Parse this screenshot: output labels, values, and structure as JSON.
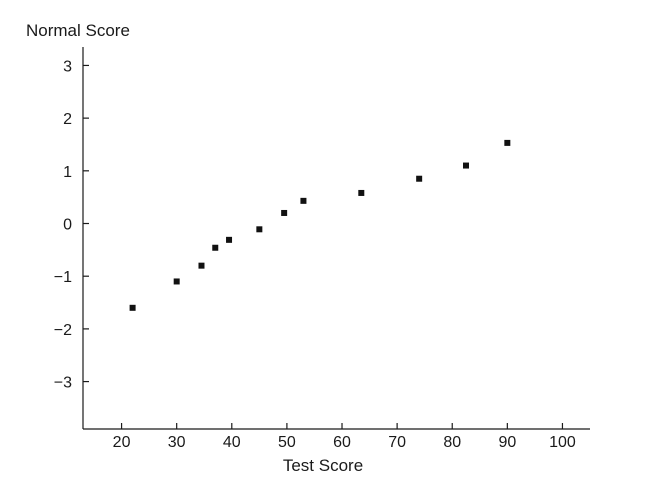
{
  "chart_data": {
    "type": "scatter",
    "title": "",
    "xlabel": "Test Score",
    "ylabel": "Normal Score",
    "xlim": [
      13,
      105
    ],
    "ylim": [
      -3.9,
      3.35
    ],
    "xticks": [
      20,
      30,
      40,
      50,
      60,
      70,
      80,
      90,
      100
    ],
    "yticks": [
      3,
      2,
      1,
      0,
      -1,
      -2,
      -3
    ],
    "ytick_labels": [
      "3",
      "2",
      "1",
      "0",
      "−1",
      "−2",
      "−3"
    ],
    "grid": false,
    "legend": "none",
    "marker_color": "#111111",
    "points": [
      {
        "x": 22,
        "y": -1.6
      },
      {
        "x": 30,
        "y": -1.1
      },
      {
        "x": 34.5,
        "y": -0.8
      },
      {
        "x": 37,
        "y": -0.46
      },
      {
        "x": 39.5,
        "y": -0.31
      },
      {
        "x": 45,
        "y": -0.11
      },
      {
        "x": 49.5,
        "y": 0.2
      },
      {
        "x": 53,
        "y": 0.43
      },
      {
        "x": 63.5,
        "y": 0.58
      },
      {
        "x": 74,
        "y": 0.85
      },
      {
        "x": 82.5,
        "y": 1.1
      },
      {
        "x": 90,
        "y": 1.53
      }
    ]
  }
}
